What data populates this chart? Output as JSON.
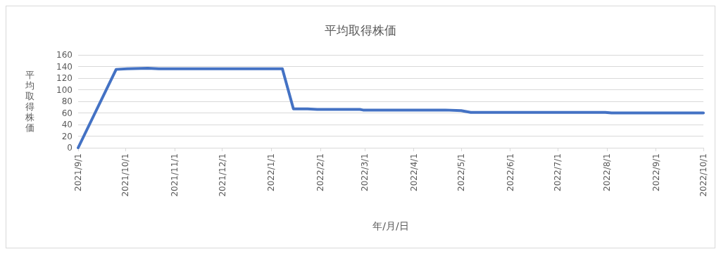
{
  "chart_data": {
    "type": "line",
    "title": "平均取得株価",
    "xlabel": "年/月/日",
    "ylabel": "平均取得株価",
    "x": [
      "2021-09-01",
      "2021-09-25",
      "2021-10-02",
      "2021-10-15",
      "2021-10-22",
      "2022-01-08",
      "2022-01-15",
      "2022-01-24",
      "2022-01-30",
      "2022-02-26",
      "2022-02-28",
      "2022-04-21",
      "2022-05-01",
      "2022-05-07",
      "2022-07-31",
      "2022-08-04",
      "2022-10-01"
    ],
    "series": [
      {
        "color": "#4472c4",
        "values": [
          0,
          135,
          136,
          137,
          136,
          136,
          67,
          67,
          66,
          66,
          65,
          65,
          64,
          61,
          61,
          60,
          60
        ]
      }
    ],
    "xlim": [
      "2021-09-01",
      "2022-10-01"
    ],
    "xticks": [
      {
        "value": "2021-09-01",
        "label": "2021/9/1"
      },
      {
        "value": "2021-10-01",
        "label": "2021/10/1"
      },
      {
        "value": "2021-11-01",
        "label": "2021/11/1"
      },
      {
        "value": "2021-12-01",
        "label": "2021/12/1"
      },
      {
        "value": "2022-01-01",
        "label": "2022/1/1"
      },
      {
        "value": "2022-02-01",
        "label": "2022/2/1"
      },
      {
        "value": "2022-03-01",
        "label": "2022/3/1"
      },
      {
        "value": "2022-04-01",
        "label": "2022/4/1"
      },
      {
        "value": "2022-05-01",
        "label": "2022/5/1"
      },
      {
        "value": "2022-06-01",
        "label": "2022/6/1"
      },
      {
        "value": "2022-07-01",
        "label": "2022/7/1"
      },
      {
        "value": "2022-08-01",
        "label": "2022/8/1"
      },
      {
        "value": "2022-09-01",
        "label": "2022/9/1"
      },
      {
        "value": "2022-10-01",
        "label": "2022/10/1"
      }
    ],
    "ylim": [
      0,
      160
    ],
    "yticks": [
      0,
      20,
      40,
      60,
      80,
      100,
      120,
      140,
      160
    ],
    "grid": "y",
    "marker": "none",
    "line_style": "solid"
  }
}
